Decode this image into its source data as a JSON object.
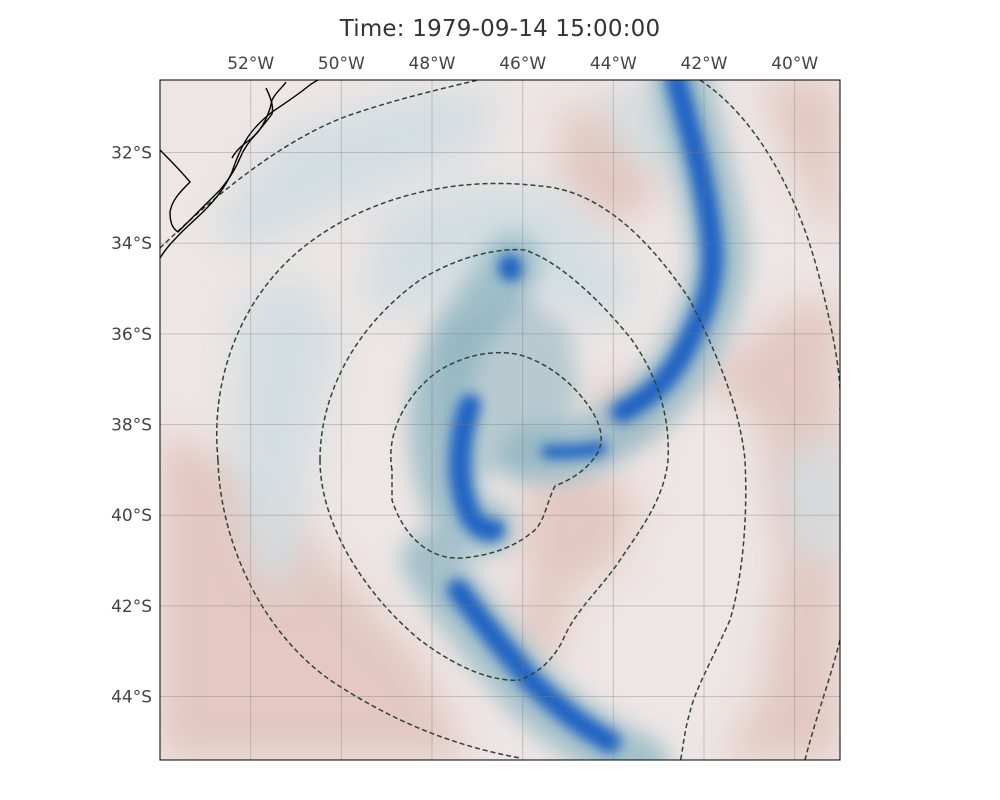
{
  "title": "Time: 1979-09-14 15:00:00",
  "map": {
    "lon_range": [
      -54,
      -39
    ],
    "lat_range": [
      -45.4,
      -30.4
    ],
    "lon_ticks": [
      {
        "value": -52,
        "label": "52°W"
      },
      {
        "value": -50,
        "label": "50°W"
      },
      {
        "value": -48,
        "label": "48°W"
      },
      {
        "value": -46,
        "label": "46°W"
      },
      {
        "value": -44,
        "label": "44°W"
      },
      {
        "value": -42,
        "label": "42°W"
      },
      {
        "value": -40,
        "label": "40°W"
      }
    ],
    "lat_ticks": [
      {
        "value": -32,
        "label": "32°S"
      },
      {
        "value": -34,
        "label": "34°S"
      },
      {
        "value": -36,
        "label": "36°S"
      },
      {
        "value": -38,
        "label": "38°S"
      },
      {
        "value": -40,
        "label": "40°S"
      },
      {
        "value": -42,
        "label": "42°S"
      },
      {
        "value": -44,
        "label": "44°S"
      }
    ],
    "gridlines": true,
    "colors": {
      "background": "#ede6e5",
      "pink": "#e2c4bd",
      "pale_blue": "#d3dde1",
      "teal": "#8bb3c0",
      "blue": "#1c62c2",
      "dark_blue": "#0c44b3",
      "contour": "#2e4438",
      "coast": "#000000"
    }
  }
}
